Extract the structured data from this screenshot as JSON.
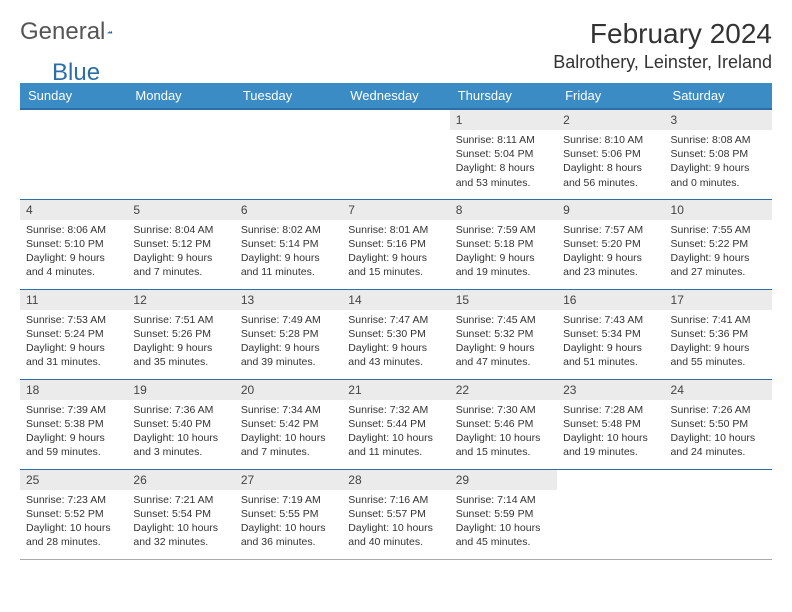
{
  "logo": {
    "word1": "General",
    "word2": "Blue"
  },
  "title": "February 2024",
  "location": "Balrothery, Leinster, Ireland",
  "colors": {
    "header_bg": "#3b8bc4",
    "header_text": "#ffffff",
    "border": "#2d6ea8",
    "daynum_bg": "#ebebeb",
    "text": "#333333",
    "logo_gray": "#555555",
    "logo_blue": "#2d6ea8"
  },
  "typography": {
    "title_fontsize": 28,
    "location_fontsize": 18,
    "dayheader_fontsize": 13,
    "daynum_fontsize": 12,
    "body_fontsize": 10.5
  },
  "day_headers": [
    "Sunday",
    "Monday",
    "Tuesday",
    "Wednesday",
    "Thursday",
    "Friday",
    "Saturday"
  ],
  "weeks": [
    [
      {
        "empty": true
      },
      {
        "empty": true
      },
      {
        "empty": true
      },
      {
        "empty": true
      },
      {
        "day": "1",
        "sunrise": "Sunrise: 8:11 AM",
        "sunset": "Sunset: 5:04 PM",
        "daylight": "Daylight: 8 hours and 53 minutes."
      },
      {
        "day": "2",
        "sunrise": "Sunrise: 8:10 AM",
        "sunset": "Sunset: 5:06 PM",
        "daylight": "Daylight: 8 hours and 56 minutes."
      },
      {
        "day": "3",
        "sunrise": "Sunrise: 8:08 AM",
        "sunset": "Sunset: 5:08 PM",
        "daylight": "Daylight: 9 hours and 0 minutes."
      }
    ],
    [
      {
        "day": "4",
        "sunrise": "Sunrise: 8:06 AM",
        "sunset": "Sunset: 5:10 PM",
        "daylight": "Daylight: 9 hours and 4 minutes."
      },
      {
        "day": "5",
        "sunrise": "Sunrise: 8:04 AM",
        "sunset": "Sunset: 5:12 PM",
        "daylight": "Daylight: 9 hours and 7 minutes."
      },
      {
        "day": "6",
        "sunrise": "Sunrise: 8:02 AM",
        "sunset": "Sunset: 5:14 PM",
        "daylight": "Daylight: 9 hours and 11 minutes."
      },
      {
        "day": "7",
        "sunrise": "Sunrise: 8:01 AM",
        "sunset": "Sunset: 5:16 PM",
        "daylight": "Daylight: 9 hours and 15 minutes."
      },
      {
        "day": "8",
        "sunrise": "Sunrise: 7:59 AM",
        "sunset": "Sunset: 5:18 PM",
        "daylight": "Daylight: 9 hours and 19 minutes."
      },
      {
        "day": "9",
        "sunrise": "Sunrise: 7:57 AM",
        "sunset": "Sunset: 5:20 PM",
        "daylight": "Daylight: 9 hours and 23 minutes."
      },
      {
        "day": "10",
        "sunrise": "Sunrise: 7:55 AM",
        "sunset": "Sunset: 5:22 PM",
        "daylight": "Daylight: 9 hours and 27 minutes."
      }
    ],
    [
      {
        "day": "11",
        "sunrise": "Sunrise: 7:53 AM",
        "sunset": "Sunset: 5:24 PM",
        "daylight": "Daylight: 9 hours and 31 minutes."
      },
      {
        "day": "12",
        "sunrise": "Sunrise: 7:51 AM",
        "sunset": "Sunset: 5:26 PM",
        "daylight": "Daylight: 9 hours and 35 minutes."
      },
      {
        "day": "13",
        "sunrise": "Sunrise: 7:49 AM",
        "sunset": "Sunset: 5:28 PM",
        "daylight": "Daylight: 9 hours and 39 minutes."
      },
      {
        "day": "14",
        "sunrise": "Sunrise: 7:47 AM",
        "sunset": "Sunset: 5:30 PM",
        "daylight": "Daylight: 9 hours and 43 minutes."
      },
      {
        "day": "15",
        "sunrise": "Sunrise: 7:45 AM",
        "sunset": "Sunset: 5:32 PM",
        "daylight": "Daylight: 9 hours and 47 minutes."
      },
      {
        "day": "16",
        "sunrise": "Sunrise: 7:43 AM",
        "sunset": "Sunset: 5:34 PM",
        "daylight": "Daylight: 9 hours and 51 minutes."
      },
      {
        "day": "17",
        "sunrise": "Sunrise: 7:41 AM",
        "sunset": "Sunset: 5:36 PM",
        "daylight": "Daylight: 9 hours and 55 minutes."
      }
    ],
    [
      {
        "day": "18",
        "sunrise": "Sunrise: 7:39 AM",
        "sunset": "Sunset: 5:38 PM",
        "daylight": "Daylight: 9 hours and 59 minutes."
      },
      {
        "day": "19",
        "sunrise": "Sunrise: 7:36 AM",
        "sunset": "Sunset: 5:40 PM",
        "daylight": "Daylight: 10 hours and 3 minutes."
      },
      {
        "day": "20",
        "sunrise": "Sunrise: 7:34 AM",
        "sunset": "Sunset: 5:42 PM",
        "daylight": "Daylight: 10 hours and 7 minutes."
      },
      {
        "day": "21",
        "sunrise": "Sunrise: 7:32 AM",
        "sunset": "Sunset: 5:44 PM",
        "daylight": "Daylight: 10 hours and 11 minutes."
      },
      {
        "day": "22",
        "sunrise": "Sunrise: 7:30 AM",
        "sunset": "Sunset: 5:46 PM",
        "daylight": "Daylight: 10 hours and 15 minutes."
      },
      {
        "day": "23",
        "sunrise": "Sunrise: 7:28 AM",
        "sunset": "Sunset: 5:48 PM",
        "daylight": "Daylight: 10 hours and 19 minutes."
      },
      {
        "day": "24",
        "sunrise": "Sunrise: 7:26 AM",
        "sunset": "Sunset: 5:50 PM",
        "daylight": "Daylight: 10 hours and 24 minutes."
      }
    ],
    [
      {
        "day": "25",
        "sunrise": "Sunrise: 7:23 AM",
        "sunset": "Sunset: 5:52 PM",
        "daylight": "Daylight: 10 hours and 28 minutes."
      },
      {
        "day": "26",
        "sunrise": "Sunrise: 7:21 AM",
        "sunset": "Sunset: 5:54 PM",
        "daylight": "Daylight: 10 hours and 32 minutes."
      },
      {
        "day": "27",
        "sunrise": "Sunrise: 7:19 AM",
        "sunset": "Sunset: 5:55 PM",
        "daylight": "Daylight: 10 hours and 36 minutes."
      },
      {
        "day": "28",
        "sunrise": "Sunrise: 7:16 AM",
        "sunset": "Sunset: 5:57 PM",
        "daylight": "Daylight: 10 hours and 40 minutes."
      },
      {
        "day": "29",
        "sunrise": "Sunrise: 7:14 AM",
        "sunset": "Sunset: 5:59 PM",
        "daylight": "Daylight: 10 hours and 45 minutes."
      },
      {
        "empty": true
      },
      {
        "empty": true
      }
    ]
  ]
}
